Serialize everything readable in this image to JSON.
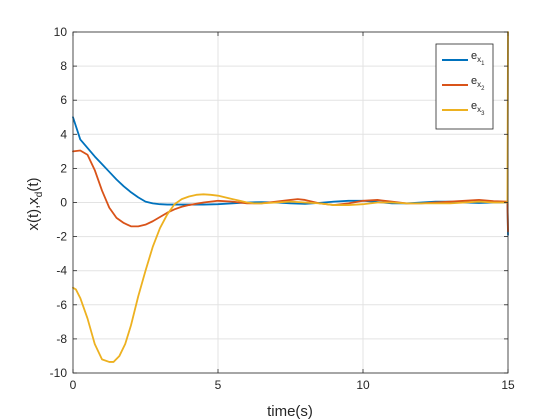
{
  "chart_data": {
    "type": "line",
    "title": "",
    "xlabel": "time(s)",
    "ylabel": "x(t),x_d(t)",
    "xlim": [
      0,
      15
    ],
    "ylim": [
      -10,
      10
    ],
    "xticks": [
      0,
      5,
      10,
      15
    ],
    "yticks": [
      -10,
      -8,
      -6,
      -4,
      -2,
      0,
      2,
      4,
      6,
      8,
      10
    ],
    "grid": true,
    "legend_position": "top-right",
    "series": [
      {
        "name": "e_x1",
        "legend_base": "e",
        "legend_sub1": "x",
        "legend_sub2": "1",
        "color": "#0072BD",
        "x": [
          0,
          0.25,
          0.5,
          0.75,
          1.0,
          1.25,
          1.5,
          1.75,
          2.0,
          2.25,
          2.5,
          2.75,
          3.0,
          3.25,
          3.5,
          4.0,
          4.5,
          5.0,
          5.5,
          6.0,
          6.5,
          7.0,
          7.5,
          8.0,
          8.5,
          9.0,
          9.5,
          10.0,
          10.5,
          11.0,
          11.5,
          12.0,
          12.5,
          13.0,
          13.5,
          14.0,
          14.5,
          14.98,
          15.0
        ],
        "y": [
          5.0,
          3.7,
          3.2,
          2.7,
          2.25,
          1.8,
          1.35,
          0.95,
          0.6,
          0.3,
          0.05,
          -0.05,
          -0.1,
          -0.12,
          -0.12,
          -0.12,
          -0.12,
          -0.1,
          -0.05,
          0.0,
          0.02,
          0.0,
          -0.05,
          -0.08,
          -0.02,
          0.05,
          0.1,
          0.1,
          0.03,
          -0.05,
          -0.05,
          0.0,
          0.05,
          0.05,
          0.0,
          -0.03,
          0.0,
          0.0,
          -1.9
        ]
      },
      {
        "name": "e_x2",
        "legend_base": "e",
        "legend_sub1": "x",
        "legend_sub2": "2",
        "color": "#D95319",
        "x": [
          0,
          0.25,
          0.5,
          0.75,
          1.0,
          1.25,
          1.5,
          1.75,
          2.0,
          2.25,
          2.5,
          2.75,
          3.0,
          3.25,
          3.5,
          3.75,
          4.0,
          4.5,
          5.0,
          5.5,
          6.0,
          6.5,
          7.0,
          7.5,
          7.75,
          8.0,
          8.5,
          9.0,
          9.5,
          10.0,
          10.5,
          11.0,
          11.5,
          12.0,
          12.5,
          13.0,
          13.5,
          14.0,
          14.5,
          14.98,
          15.0
        ],
        "y": [
          3.0,
          3.05,
          2.8,
          1.9,
          0.7,
          -0.3,
          -0.9,
          -1.2,
          -1.4,
          -1.4,
          -1.3,
          -1.1,
          -0.85,
          -0.6,
          -0.4,
          -0.25,
          -0.15,
          0.0,
          0.1,
          0.05,
          -0.05,
          -0.05,
          0.05,
          0.15,
          0.2,
          0.15,
          -0.05,
          -0.15,
          -0.05,
          0.1,
          0.15,
          0.05,
          -0.05,
          -0.05,
          0.0,
          0.05,
          0.1,
          0.15,
          0.08,
          0.05,
          -1.7
        ]
      },
      {
        "name": "e_x3",
        "legend_base": "e",
        "legend_sub1": "x",
        "legend_sub2": "3",
        "color": "#EDB120",
        "x": [
          0,
          0.1,
          0.25,
          0.5,
          0.75,
          1.0,
          1.25,
          1.4,
          1.6,
          1.8,
          2.0,
          2.25,
          2.5,
          2.75,
          3.0,
          3.25,
          3.5,
          3.75,
          4.0,
          4.25,
          4.5,
          4.75,
          5.0,
          5.25,
          5.5,
          5.75,
          6.0,
          6.25,
          6.5,
          7.0,
          7.5,
          8.0,
          8.5,
          9.0,
          9.5,
          10.0,
          10.5,
          11.0,
          11.5,
          12.0,
          12.5,
          13.0,
          13.5,
          14.0,
          14.5,
          14.98,
          15.0
        ],
        "y": [
          -5.0,
          -5.1,
          -5.6,
          -6.8,
          -8.3,
          -9.2,
          -9.35,
          -9.35,
          -9.0,
          -8.3,
          -7.2,
          -5.5,
          -4.0,
          -2.6,
          -1.5,
          -0.7,
          -0.1,
          0.2,
          0.35,
          0.45,
          0.48,
          0.45,
          0.4,
          0.3,
          0.2,
          0.1,
          0.0,
          -0.05,
          -0.05,
          0.0,
          0.05,
          0.0,
          -0.05,
          -0.15,
          -0.15,
          -0.1,
          0.0,
          0.0,
          -0.05,
          -0.05,
          -0.05,
          -0.05,
          0.0,
          0.05,
          0.0,
          0.0,
          10.0
        ]
      }
    ]
  }
}
